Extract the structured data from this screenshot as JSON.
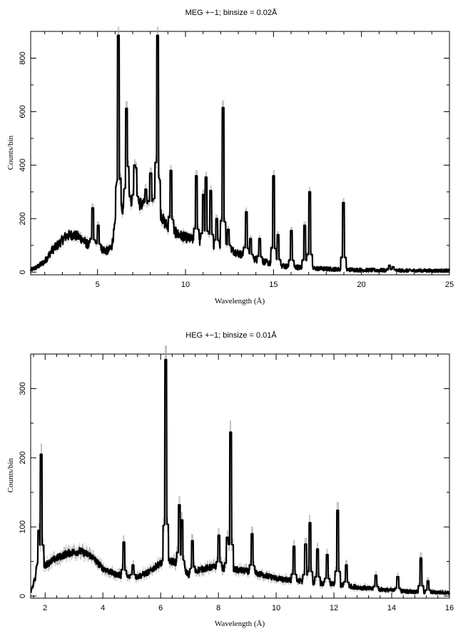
{
  "chart_data": [
    {
      "type": "line",
      "title": "MEG +−1; binsize = 0.02Å",
      "xlabel": "Wavelength (Å)",
      "ylabel": "Counts/bin",
      "xlim": [
        1.2,
        25
      ],
      "ylim": [
        -10,
        900
      ],
      "xticks": [
        5,
        10,
        15,
        20,
        25
      ],
      "yticks": [
        0,
        200,
        400,
        600,
        800
      ],
      "grid": false,
      "continuum": [
        [
          1.2,
          8
        ],
        [
          1.6,
          20
        ],
        [
          2,
          40
        ],
        [
          2.4,
          80
        ],
        [
          2.8,
          105
        ],
        [
          3.2,
          135
        ],
        [
          3.6,
          140
        ],
        [
          4,
          130
        ],
        [
          4.4,
          105
        ],
        [
          4.8,
          95
        ],
        [
          5.2,
          88
        ],
        [
          5.6,
          78
        ],
        [
          5.8,
          95
        ],
        [
          6.1,
          220
        ],
        [
          6.5,
          245
        ],
        [
          7,
          265
        ],
        [
          7.5,
          255
        ],
        [
          8,
          240
        ],
        [
          8.4,
          250
        ],
        [
          8.8,
          185
        ],
        [
          9.2,
          160
        ],
        [
          9.6,
          140
        ],
        [
          10,
          130
        ],
        [
          10.5,
          120
        ],
        [
          11,
          112
        ],
        [
          11.5,
          105
        ],
        [
          12,
          100
        ],
        [
          12.5,
          88
        ],
        [
          13,
          70
        ],
        [
          13.5,
          60
        ],
        [
          14,
          48
        ],
        [
          14.5,
          38
        ],
        [
          15,
          30
        ],
        [
          15.5,
          24
        ],
        [
          16,
          20
        ],
        [
          17,
          15
        ],
        [
          18,
          12
        ],
        [
          19,
          10
        ],
        [
          20,
          8
        ],
        [
          22,
          6
        ],
        [
          25,
          5
        ]
      ],
      "lines": [
        [
          4.73,
          240
        ],
        [
          5.04,
          175
        ],
        [
          6.18,
          885
        ],
        [
          6.65,
          612
        ],
        [
          6.74,
          395
        ],
        [
          7.1,
          400
        ],
        [
          7.18,
          390
        ],
        [
          7.75,
          310
        ],
        [
          8.02,
          370
        ],
        [
          8.31,
          410
        ],
        [
          8.42,
          885
        ],
        [
          9.17,
          380
        ],
        [
          10.62,
          360
        ],
        [
          11.02,
          290
        ],
        [
          11.17,
          355
        ],
        [
          11.43,
          305
        ],
        [
          11.77,
          200
        ],
        [
          12.13,
          615
        ],
        [
          12.43,
          160
        ],
        [
          13.45,
          225
        ],
        [
          13.7,
          125
        ],
        [
          14.21,
          125
        ],
        [
          15.01,
          360
        ],
        [
          15.26,
          140
        ],
        [
          16.01,
          155
        ],
        [
          16.78,
          175
        ],
        [
          17.05,
          300
        ],
        [
          18.97,
          260
        ],
        [
          21.6,
          25
        ],
        [
          21.8,
          20
        ]
      ]
    },
    {
      "type": "line",
      "title": "HEG +−1; binsize = 0.01Å",
      "xlabel": "Wavelength (Å)",
      "ylabel": "Counts/bin",
      "xlim": [
        1.5,
        16
      ],
      "ylim": [
        -3,
        350
      ],
      "xticks": [
        2,
        4,
        6,
        8,
        10,
        12,
        14,
        16
      ],
      "yticks": [
        0,
        100,
        200,
        300
      ],
      "grid": false,
      "continuum": [
        [
          1.5,
          5
        ],
        [
          1.65,
          25
        ],
        [
          1.8,
          45
        ],
        [
          2.0,
          45
        ],
        [
          2.4,
          55
        ],
        [
          2.8,
          62
        ],
        [
          3.2,
          65
        ],
        [
          3.6,
          58
        ],
        [
          4.0,
          40
        ],
        [
          4.4,
          32
        ],
        [
          4.8,
          28
        ],
        [
          5.2,
          28
        ],
        [
          5.6,
          35
        ],
        [
          5.9,
          45
        ],
        [
          6.2,
          52
        ],
        [
          6.6,
          48
        ],
        [
          7.0,
          30
        ],
        [
          7.3,
          38
        ],
        [
          7.8,
          42
        ],
        [
          8.2,
          40
        ],
        [
          8.6,
          38
        ],
        [
          9.0,
          36
        ],
        [
          9.4,
          32
        ],
        [
          9.8,
          28
        ],
        [
          10.2,
          24
        ],
        [
          10.8,
          22
        ],
        [
          11.4,
          19
        ],
        [
          12.0,
          17
        ],
        [
          12.6,
          14
        ],
        [
          13.2,
          11
        ],
        [
          13.8,
          9
        ],
        [
          14.4,
          7
        ],
        [
          15.0,
          6
        ],
        [
          16.0,
          5
        ]
      ],
      "lines": [
        [
          1.78,
          95
        ],
        [
          1.86,
          205
        ],
        [
          4.73,
          78
        ],
        [
          5.04,
          45
        ],
        [
          6.18,
          342
        ],
        [
          6.65,
          132
        ],
        [
          6.74,
          110
        ],
        [
          7.1,
          80
        ],
        [
          8.02,
          88
        ],
        [
          8.31,
          85
        ],
        [
          8.42,
          237
        ],
        [
          9.17,
          90
        ],
        [
          10.62,
          72
        ],
        [
          11.17,
          106
        ],
        [
          11.02,
          75
        ],
        [
          11.43,
          68
        ],
        [
          11.77,
          60
        ],
        [
          12.13,
          124
        ],
        [
          12.43,
          45
        ],
        [
          13.45,
          30
        ],
        [
          14.21,
          28
        ],
        [
          15.01,
          55
        ],
        [
          15.26,
          22
        ]
      ]
    }
  ]
}
